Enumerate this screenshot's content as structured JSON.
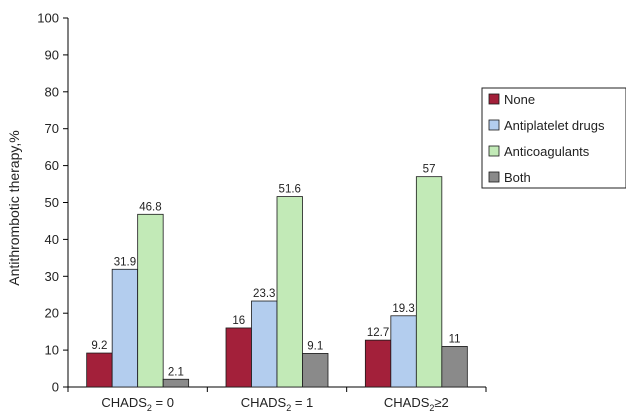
{
  "chart_data": {
    "type": "bar",
    "categories": [
      "CHADS2 = 0",
      "CHADS2 = 1",
      "CHADS2≥2"
    ],
    "category_parts": [
      {
        "main": "CHADS",
        "sub": "2",
        "tail": " = 0"
      },
      {
        "main": "CHADS",
        "sub": "2",
        "tail": " = 1"
      },
      {
        "main": "CHADS",
        "sub": "2",
        "tail": "≥2"
      }
    ],
    "series": [
      {
        "name": "None",
        "color": "#a3203a",
        "values": [
          9.2,
          16,
          12.7
        ],
        "labels": [
          "9.2",
          "16",
          "12.7"
        ]
      },
      {
        "name": "Antiplatelet drugs",
        "color": "#b3cdee",
        "values": [
          31.9,
          23.3,
          19.3
        ],
        "labels": [
          "31.9",
          "23.3",
          "19.3"
        ]
      },
      {
        "name": "Anticoagulants",
        "color": "#c2eab7",
        "values": [
          46.8,
          51.6,
          57
        ],
        "labels": [
          "46.8",
          "51.6",
          "57"
        ]
      },
      {
        "name": "Both",
        "color": "#8a8a8a",
        "values": [
          2.1,
          9.1,
          11
        ],
        "labels": [
          "2.1",
          "9.1",
          "11"
        ]
      }
    ],
    "ylabel": "Antithrombotic therapy,%",
    "xlabel": "",
    "ylim": [
      0,
      100
    ],
    "yticks": [
      0,
      10,
      20,
      30,
      40,
      50,
      60,
      70,
      80,
      90,
      100
    ],
    "grid": false,
    "legend_position": "right"
  }
}
